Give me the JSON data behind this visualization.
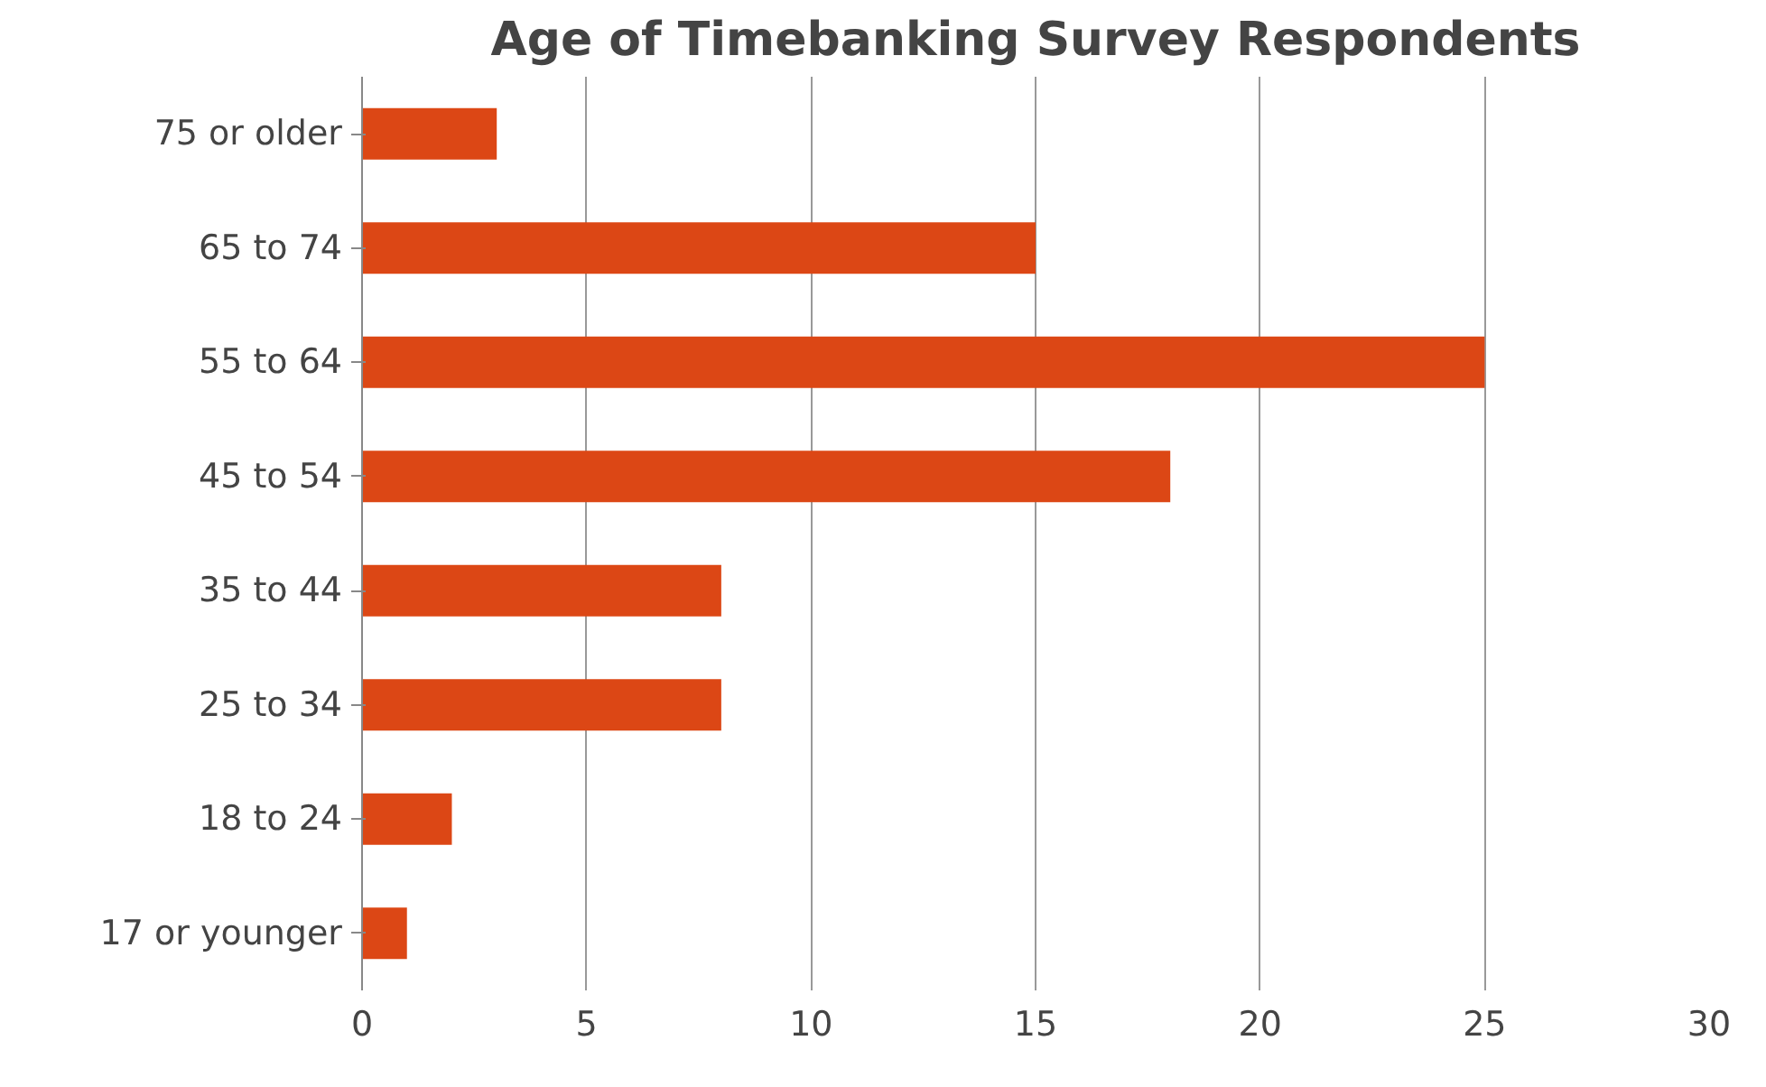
{
  "chart_data": {
    "type": "bar",
    "orientation": "horizontal",
    "title": "Age of Timebanking Survey Respondents",
    "categories": [
      "75 or older",
      "65 to 74",
      "55 to 64",
      "45 to 54",
      "35 to 44",
      "25 to 34",
      "18 to 24",
      "17 or younger"
    ],
    "values": [
      3,
      15,
      25,
      18,
      8,
      8,
      2,
      1
    ],
    "color": "#dc4715",
    "xlim": [
      0,
      30
    ],
    "xticks": [
      0,
      5,
      10,
      15,
      20,
      25,
      30
    ],
    "grid": "x"
  }
}
